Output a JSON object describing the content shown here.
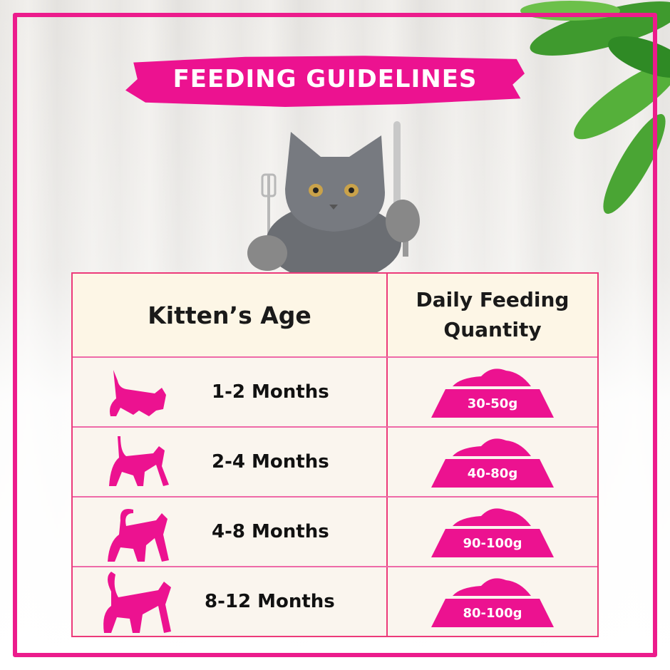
{
  "title": "FEEDING GUIDELINES",
  "colors": {
    "accent": "#ec1290",
    "header_bg": "#fdf6e6",
    "row_bg": "#faf5ee"
  },
  "table": {
    "headers": [
      "Kitten’s Age",
      "Daily Feeding Quantity"
    ],
    "header_line1": "Daily Feeding",
    "header_line2": "Quantity",
    "rows": [
      {
        "age": "1-2 Months",
        "quantity": "30-50g",
        "icon": "kitten-crouching-icon"
      },
      {
        "age": "2-4 Months",
        "quantity": "40-80g",
        "icon": "kitten-walking-icon"
      },
      {
        "age": "4-8 Months",
        "quantity": "90-100g",
        "icon": "cat-walking-icon"
      },
      {
        "age": "8-12 Months",
        "quantity": "80-100g",
        "icon": "cat-standing-icon"
      }
    ]
  }
}
